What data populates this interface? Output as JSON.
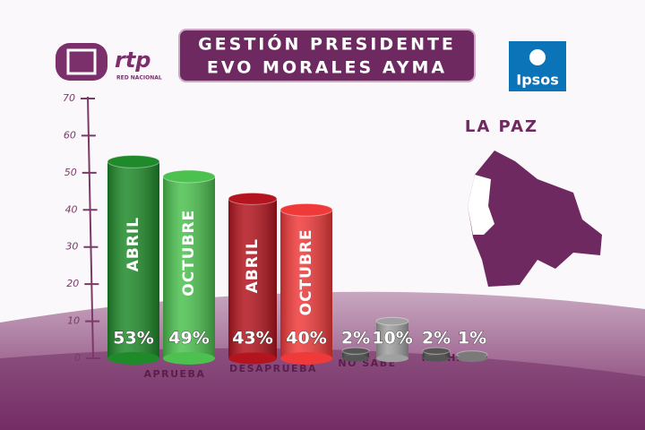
{
  "chart_data": {
    "type": "bar",
    "title": [
      "GESTIÓN PRESIDENTE",
      "EVO MORALES AYMA"
    ],
    "categories": [
      "APRUEBA",
      "DESAPRUEBA",
      "NO SABE",
      "RECHAZA"
    ],
    "series": [
      {
        "name": "ABRIL",
        "colors": [
          "#1f8a2a",
          "#b3141e",
          "#555555",
          "#555555"
        ],
        "values": [
          53,
          43,
          2,
          2
        ],
        "value_labels": [
          "53%",
          "43%",
          "2%",
          "2%"
        ]
      },
      {
        "name": "OCTUBRE",
        "colors": [
          "#4cc14f",
          "#f03a3a",
          "#a0a0a0",
          "#7a7a7a"
        ],
        "values": [
          49,
          40,
          10,
          1
        ],
        "value_labels": [
          "49%",
          "40%",
          "10%",
          "1%"
        ]
      }
    ],
    "ylim": [
      0,
      70
    ],
    "yticks": [
      0,
      10,
      20,
      30,
      40,
      50,
      60,
      70
    ]
  },
  "logos": {
    "channel": "rtp",
    "channel_sub": "RED NACIONAL",
    "pollster": "Ipsos"
  },
  "region": "LA PAZ"
}
